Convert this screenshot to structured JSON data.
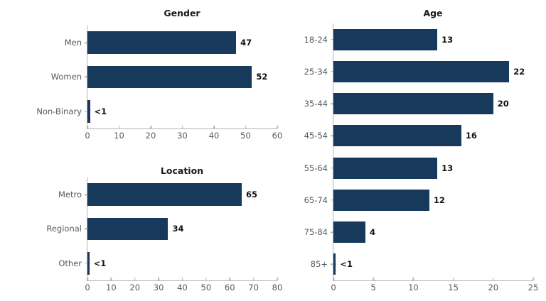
{
  "page": {
    "background": "#ffffff"
  },
  "theme": {
    "bar_color": "#16395c",
    "muted_text_color": "#595959",
    "axis_color": "#b3b3b3",
    "value_label_color": "#111111",
    "title_color": "#1a1a1a"
  },
  "chart_data": [
    {
      "id": "gender",
      "type": "bar",
      "orientation": "horizontal",
      "title": "Gender",
      "categories": [
        "Men",
        "Women",
        "Non-Binary"
      ],
      "values": [
        47,
        52,
        0.8
      ],
      "value_labels": [
        "47",
        "52",
        "<1"
      ],
      "xlim": [
        0,
        60
      ],
      "xticks": [
        0,
        10,
        20,
        30,
        40,
        50,
        60
      ],
      "grid": false,
      "legend": false
    },
    {
      "id": "location",
      "type": "bar",
      "orientation": "horizontal",
      "title": "Location",
      "categories": [
        "Metro",
        "Regional",
        "Other"
      ],
      "values": [
        65,
        34,
        0.8
      ],
      "value_labels": [
        "65",
        "34",
        "<1"
      ],
      "xlim": [
        0,
        80
      ],
      "xticks": [
        0,
        10,
        20,
        30,
        40,
        50,
        60,
        70,
        80
      ],
      "grid": false,
      "legend": false
    },
    {
      "id": "age",
      "type": "bar",
      "orientation": "horizontal",
      "title": "Age",
      "categories": [
        "18-24",
        "25-34",
        "35-44",
        "45-54",
        "55-64",
        "65-74",
        "75-84",
        "85+"
      ],
      "values": [
        13,
        22,
        20,
        16,
        13,
        12,
        4,
        0.3
      ],
      "value_labels": [
        "13",
        "22",
        "20",
        "16",
        "13",
        "12",
        "4",
        "<1"
      ],
      "xlim": [
        0,
        25
      ],
      "xticks": [
        0,
        5,
        10,
        15,
        20,
        25
      ],
      "grid": false,
      "legend": false
    }
  ]
}
